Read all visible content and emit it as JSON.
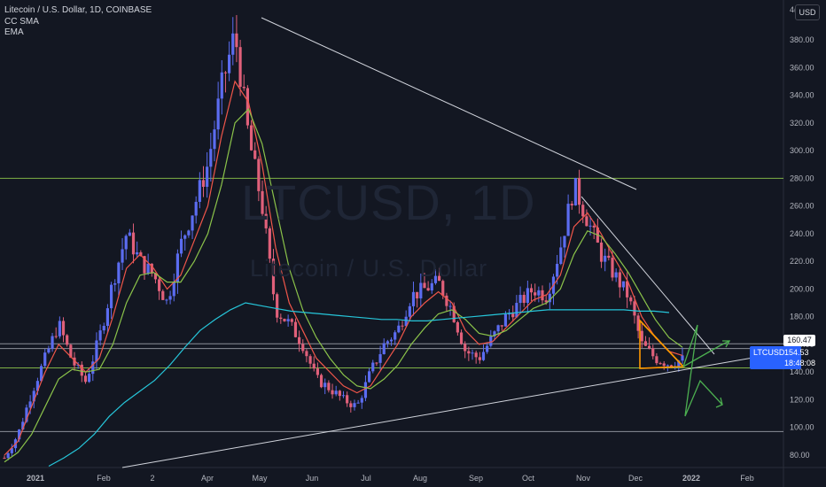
{
  "legend": {
    "title": "Litecoin / U.S. Dollar, 1D, COINBASE",
    "ind1": "CC SMA",
    "ind2": "EMA"
  },
  "watermark": {
    "symbol": "LTCUSD, 1D",
    "name": "Litecoin / U.S. Dollar"
  },
  "currency_button": "USD",
  "top_tick": "4(",
  "price_label": {
    "symbol": "LTCUSD",
    "last": "154.53",
    "timer": "18:48:08",
    "level": "160.47"
  },
  "colors": {
    "background": "#131722",
    "bull": "#5b6cf0",
    "bear": "#e0607a",
    "fast_ma": "#f0564a",
    "slow_ma": "#8bc34a",
    "long_ma": "#26c6da",
    "green_level": "#8bc34a",
    "white_line": "#d1d4dc",
    "triangle": "#ff9800",
    "projection": "#4caf50"
  },
  "chart_data": {
    "type": "line",
    "x_ticks": [
      "2021",
      "Feb",
      "2",
      "Apr",
      "May",
      "Jun",
      "Jul",
      "Aug",
      "Sep",
      "Oct",
      "Nov",
      "Dec",
      "2022",
      "Feb"
    ],
    "y_ticks": [
      80,
      100,
      120,
      140,
      160,
      180,
      200,
      220,
      240,
      260,
      280,
      300,
      320,
      340,
      360,
      380
    ],
    "ylim": [
      72,
      410
    ],
    "series": [
      {
        "name": "",
        "kind": "close",
        "values": [
          78,
          95,
          125,
          150,
          175,
          148,
          133,
          165,
          205,
          240,
          220,
          210,
          190,
          232,
          260,
          290,
          345,
          385,
          310,
          260,
          185,
          175,
          160,
          135,
          128,
          120,
          115,
          140,
          160,
          170,
          195,
          200,
          205,
          185,
          155,
          150,
          165,
          180,
          190,
          200,
          195,
          230,
          275,
          250,
          225,
          210,
          195,
          160,
          150,
          146,
          149
        ]
      },
      {
        "name": "CC SMA",
        "kind": "ma",
        "values": [
          80,
          90,
          115,
          140,
          160,
          150,
          140,
          150,
          180,
          215,
          225,
          215,
          200,
          210,
          235,
          260,
          310,
          350,
          335,
          290,
          230,
          190,
          170,
          150,
          140,
          130,
          125,
          130,
          145,
          160,
          180,
          190,
          198,
          190,
          170,
          160,
          162,
          172,
          182,
          192,
          196,
          210,
          245,
          255,
          240,
          222,
          205,
          180,
          165,
          155,
          152
        ]
      },
      {
        "name": "EMA",
        "kind": "ma",
        "values": [
          75,
          82,
          95,
          115,
          135,
          142,
          140,
          142,
          160,
          190,
          210,
          212,
          205,
          205,
          220,
          240,
          275,
          320,
          330,
          305,
          260,
          215,
          185,
          165,
          150,
          138,
          130,
          128,
          135,
          145,
          160,
          172,
          182,
          185,
          178,
          168,
          166,
          170,
          178,
          186,
          190,
          200,
          225,
          242,
          238,
          226,
          212,
          195,
          178,
          165,
          158
        ]
      },
      {
        "name": "",
        "kind": "long_ma",
        "values": [
          72,
          78,
          85,
          95,
          108,
          118,
          126,
          134,
          145,
          158,
          170,
          178,
          185,
          190,
          188,
          186,
          184,
          183,
          182,
          181,
          180,
          179,
          178,
          178,
          177,
          177,
          178,
          179,
          180,
          181,
          182,
          183,
          184,
          185,
          185,
          185,
          185,
          185,
          185,
          184,
          184,
          183
        ]
      }
    ],
    "horizontal_levels": [
      280,
      160.47,
      157,
      143,
      97
    ],
    "annotations": [
      "triangle",
      "trendlines",
      "zigzag projection"
    ]
  }
}
